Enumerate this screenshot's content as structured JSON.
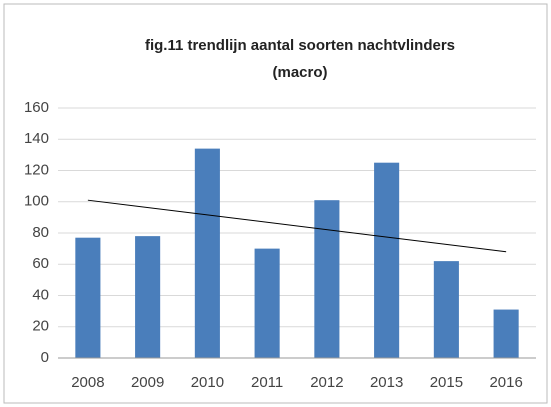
{
  "chart_data": {
    "type": "bar",
    "title": [
      "fig.11 trendlijn aantal soorten nachtvlinders",
      "(macro)"
    ],
    "categories": [
      "2008",
      "2009",
      "2010",
      "2011",
      "2012",
      "2013",
      "2015",
      "2016"
    ],
    "values": [
      77,
      78,
      134,
      70,
      101,
      125,
      62,
      31
    ],
    "color": "#4a7ebb",
    "trendline": [
      101,
      68
    ],
    "trendline_color": "#000000",
    "ylim": [
      0,
      160
    ],
    "yticks": [
      0,
      20,
      40,
      60,
      80,
      100,
      120,
      140,
      160
    ],
    "grid": true
  }
}
